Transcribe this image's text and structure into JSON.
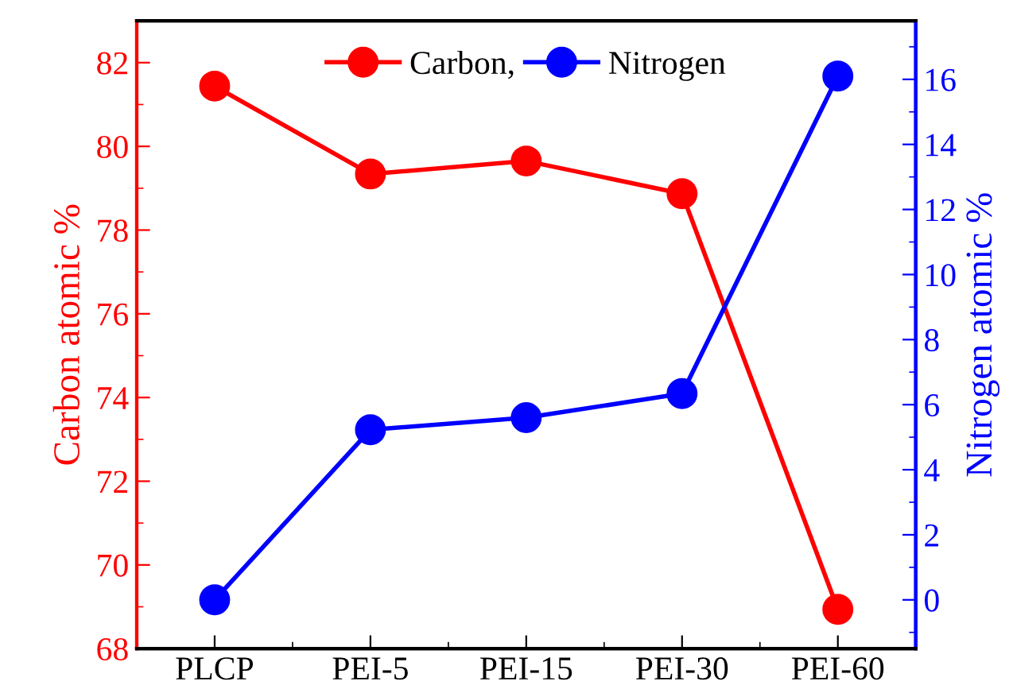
{
  "chart_data": {
    "type": "line",
    "categories": [
      "PLCP",
      "PEI-5",
      "PEI-15",
      "PEI-30",
      "PEI-60"
    ],
    "ylabel": "Carbon atomic %",
    "y2label": "Nitrogen atomic %",
    "series": [
      {
        "name": "Carbon,",
        "color": "#ff0000",
        "values": [
          81.44,
          79.34,
          79.65,
          78.87,
          68.94
        ]
      },
      {
        "name": "Nitrogen",
        "color": "#0000ff",
        "axis": "y2",
        "values": [
          0,
          5.23,
          5.6,
          6.34,
          16.1
        ]
      }
    ],
    "ylim": [
      68,
      83
    ],
    "yticks": [
      68,
      70,
      72,
      74,
      76,
      78,
      80,
      82
    ],
    "y2lim": [
      -1.5,
      17.8
    ],
    "y2ticks": [
      0,
      2,
      4,
      6,
      8,
      10,
      12,
      14,
      16
    ],
    "marker": "circle",
    "line_style": "solid",
    "legend": "top",
    "grid": false
  }
}
